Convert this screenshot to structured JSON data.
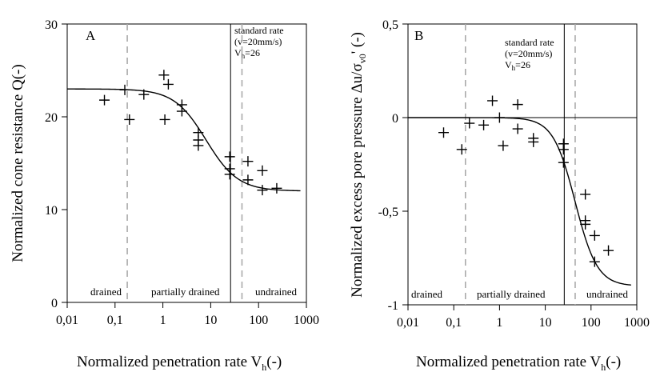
{
  "chart_data": [
    {
      "type": "scatter",
      "panel_label": "A",
      "xlabel": "Normalized penetration rate V",
      "xlabel_sub": "h",
      "xlabel_unit": "(-)",
      "ylabel": "Normalized cone resistance Q(-)",
      "x_scale": "log",
      "xlim": [
        0.01,
        1000
      ],
      "ylim": [
        0,
        30
      ],
      "x_ticks": [
        0.01,
        0.1,
        1,
        10,
        100,
        1000
      ],
      "x_tick_labels": [
        "0,01",
        "0,1",
        "1",
        "10",
        "100",
        "1000"
      ],
      "y_ticks": [
        0,
        10,
        20,
        30
      ],
      "y_tick_labels": [
        "0",
        "10",
        "20",
        "30"
      ],
      "points": [
        {
          "x": 0.06,
          "y": 21.8
        },
        {
          "x": 0.16,
          "y": 22.9
        },
        {
          "x": 0.2,
          "y": 19.7
        },
        {
          "x": 0.4,
          "y": 22.4
        },
        {
          "x": 1.05,
          "y": 24.5
        },
        {
          "x": 1.3,
          "y": 23.5
        },
        {
          "x": 1.1,
          "y": 19.7
        },
        {
          "x": 2.5,
          "y": 21.3
        },
        {
          "x": 2.5,
          "y": 20.6
        },
        {
          "x": 5.5,
          "y": 18.3
        },
        {
          "x": 5.5,
          "y": 17.5
        },
        {
          "x": 5.5,
          "y": 16.9
        },
        {
          "x": 25,
          "y": 15.7
        },
        {
          "x": 25,
          "y": 14.4
        },
        {
          "x": 25,
          "y": 13.8
        },
        {
          "x": 60,
          "y": 15.2
        },
        {
          "x": 60,
          "y": 13.2
        },
        {
          "x": 120,
          "y": 14.2
        },
        {
          "x": 120,
          "y": 12.1
        },
        {
          "x": 240,
          "y": 12.3
        }
      ],
      "fit_curve": {
        "upper": 23.0,
        "lower": 12.0,
        "x_mid": 8,
        "slope": 1.3
      },
      "dashed_lines_x": [
        0.18,
        45
      ],
      "standard_rate_x": 26,
      "annotation_lines": [
        "standard rate",
        "(v=20mm/s)",
        "V",
        "h",
        "=26"
      ],
      "regions": [
        "drained",
        "partially drained",
        "undrained"
      ]
    },
    {
      "type": "scatter",
      "panel_label": "B",
      "xlabel": "Normalized penetration rate V",
      "xlabel_sub": "h",
      "xlabel_unit": "(-)",
      "ylabel_parts": [
        "Normalized excess pore pressure Δu/σ",
        "v0",
        "' (-)"
      ],
      "x_scale": "log",
      "xlim": [
        0.01,
        1000
      ],
      "ylim": [
        -1,
        0.5
      ],
      "x_ticks": [
        0.01,
        0.1,
        1,
        10,
        100,
        1000
      ],
      "x_tick_labels": [
        "0,01",
        "0,1",
        "1",
        "10",
        "100",
        "1000"
      ],
      "y_ticks": [
        -1,
        -0.5,
        0,
        0.5
      ],
      "y_tick_labels": [
        "-1",
        "-0,5",
        "0",
        "0,5"
      ],
      "points": [
        {
          "x": 0.06,
          "y": -0.08
        },
        {
          "x": 0.15,
          "y": -0.17
        },
        {
          "x": 0.22,
          "y": -0.03
        },
        {
          "x": 0.45,
          "y": -0.04
        },
        {
          "x": 0.7,
          "y": 0.09
        },
        {
          "x": 1.0,
          "y": 0.0
        },
        {
          "x": 1.2,
          "y": -0.15
        },
        {
          "x": 2.5,
          "y": 0.07
        },
        {
          "x": 2.5,
          "y": -0.06
        },
        {
          "x": 5.5,
          "y": -0.11
        },
        {
          "x": 5.5,
          "y": -0.13
        },
        {
          "x": 25,
          "y": -0.14
        },
        {
          "x": 25,
          "y": -0.17
        },
        {
          "x": 25,
          "y": -0.24
        },
        {
          "x": 75,
          "y": -0.41
        },
        {
          "x": 75,
          "y": -0.55
        },
        {
          "x": 75,
          "y": -0.57
        },
        {
          "x": 120,
          "y": -0.63
        },
        {
          "x": 120,
          "y": -0.77
        },
        {
          "x": 240,
          "y": -0.71
        }
      ],
      "fit_curve": {
        "upper": 0.0,
        "lower": -0.9,
        "x_mid": 45,
        "slope": 1.8
      },
      "zero_line_y": 0,
      "dashed_lines_x": [
        0.18,
        45
      ],
      "standard_rate_x": 26,
      "annotation_lines": [
        "standard rate",
        "(v=20mm/s)",
        "V",
        "h",
        "=26"
      ],
      "regions": [
        "drained",
        "partially drained",
        "undrained"
      ]
    }
  ]
}
